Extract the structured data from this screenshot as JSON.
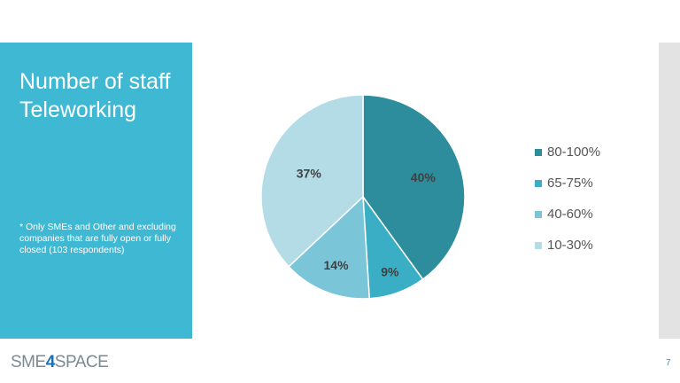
{
  "slide": {
    "title": "Number of staff Teleworking",
    "note": "* Only SMEs and Other and excluding companies that are fully open or fully closed (103 respondents)",
    "logo": {
      "prefix": "SME",
      "highlight": "4",
      "suffix": "SPACE"
    },
    "page_number": "7"
  },
  "chart_data": {
    "type": "pie",
    "categories": [
      "80-100%",
      "65-75%",
      "40-60%",
      "10-30%"
    ],
    "values": [
      40,
      9,
      14,
      37
    ],
    "labels": [
      "40%",
      "9%",
      "14%",
      "37%"
    ],
    "colors": [
      "#2e8d9c",
      "#3aaec5",
      "#7bc5d9",
      "#b3dce6"
    ],
    "start_angle": "top",
    "direction": "clockwise",
    "legend_position": "right"
  }
}
